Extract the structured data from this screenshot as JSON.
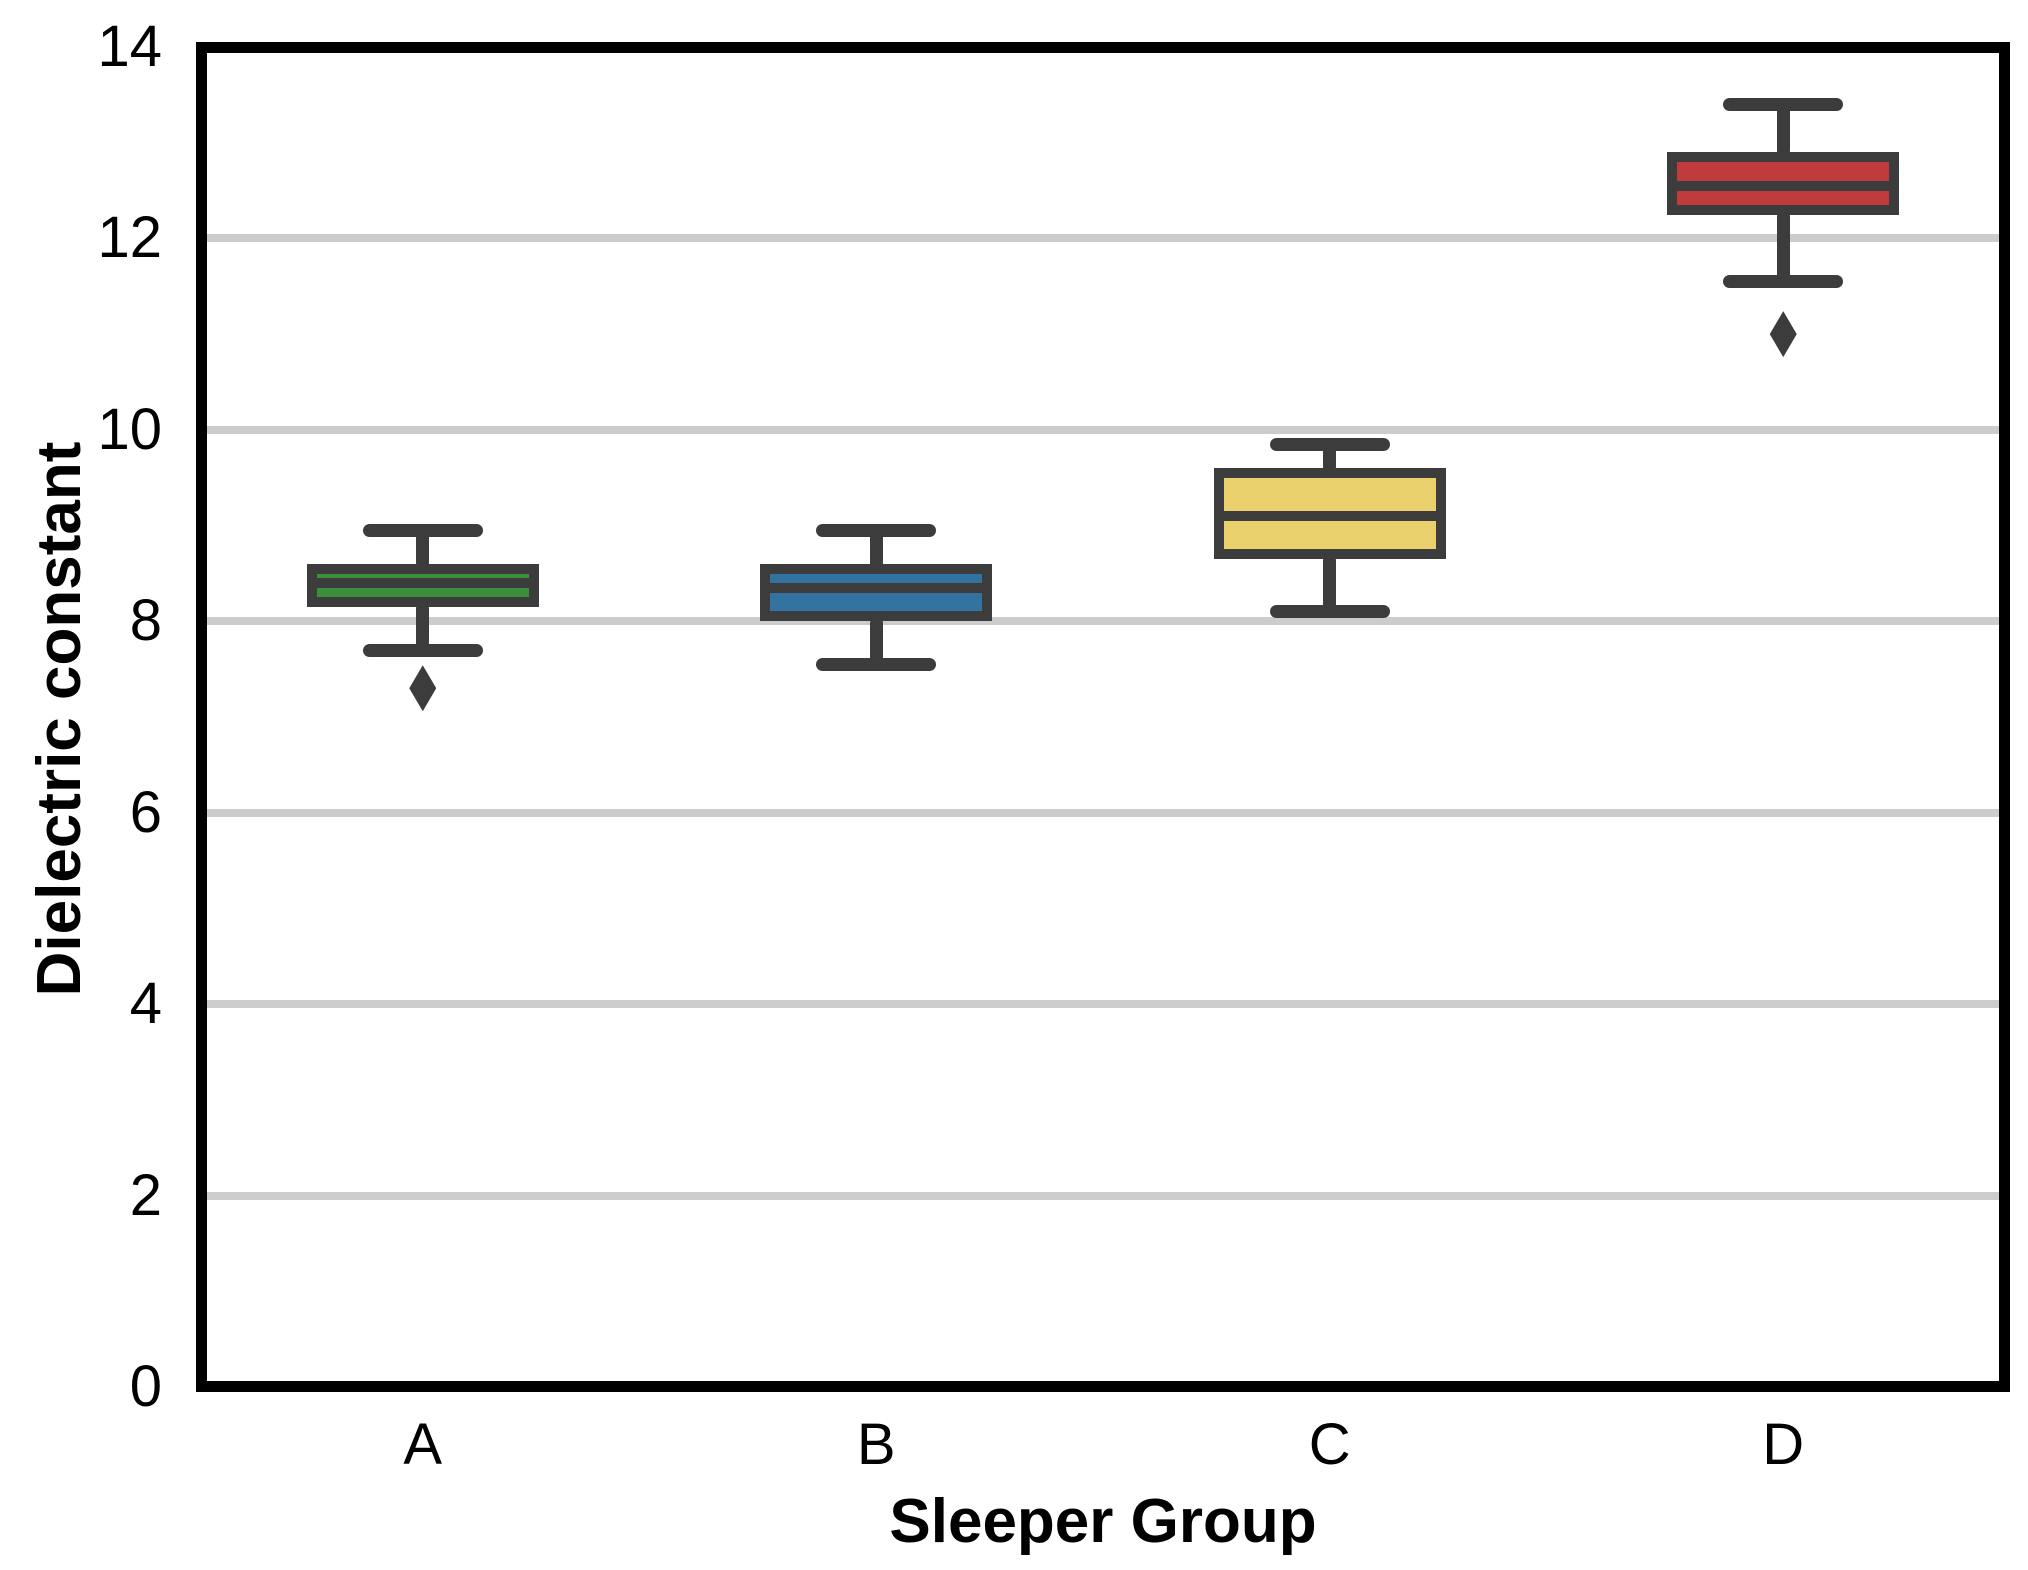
{
  "chart_data": {
    "type": "box",
    "title": "",
    "xlabel": "Sleeper Group",
    "ylabel": "Dielectric constant",
    "ylim": [
      0,
      14
    ],
    "yticks": [
      0,
      2,
      4,
      6,
      8,
      10,
      12,
      14
    ],
    "grid": "horizontal-gray-lines-at-even-values",
    "legend": "none",
    "categories": [
      "A",
      "B",
      "C",
      "D"
    ],
    "groups": [
      {
        "label": "A",
        "color": "#3a8e3c",
        "whisker_low": 7.7,
        "q1": 8.2,
        "median": 8.4,
        "q3": 8.55,
        "whisker_high": 8.95,
        "outliers": [
          7.3
        ]
      },
      {
        "label": "B",
        "color": "#32739f",
        "whisker_low": 7.55,
        "q1": 8.05,
        "median": 8.35,
        "q3": 8.55,
        "whisker_high": 8.95,
        "outliers": []
      },
      {
        "label": "C",
        "color": "#e9d06c",
        "whisker_low": 8.1,
        "q1": 8.7,
        "median": 9.1,
        "q3": 9.55,
        "whisker_high": 9.85,
        "outliers": []
      },
      {
        "label": "D",
        "color": "#c13a3c",
        "whisker_low": 11.55,
        "q1": 12.3,
        "median": 12.55,
        "q3": 12.85,
        "whisker_high": 13.4,
        "outliers": [
          11.0
        ]
      }
    ],
    "colors": {
      "box_border": "#3c3c3c",
      "whisker": "#3c3c3c",
      "median": "#3c3c3c",
      "outlier": "#3c3c3c",
      "gridline": "#cccccc",
      "spine": "#000000",
      "background": "#ffffff"
    }
  }
}
